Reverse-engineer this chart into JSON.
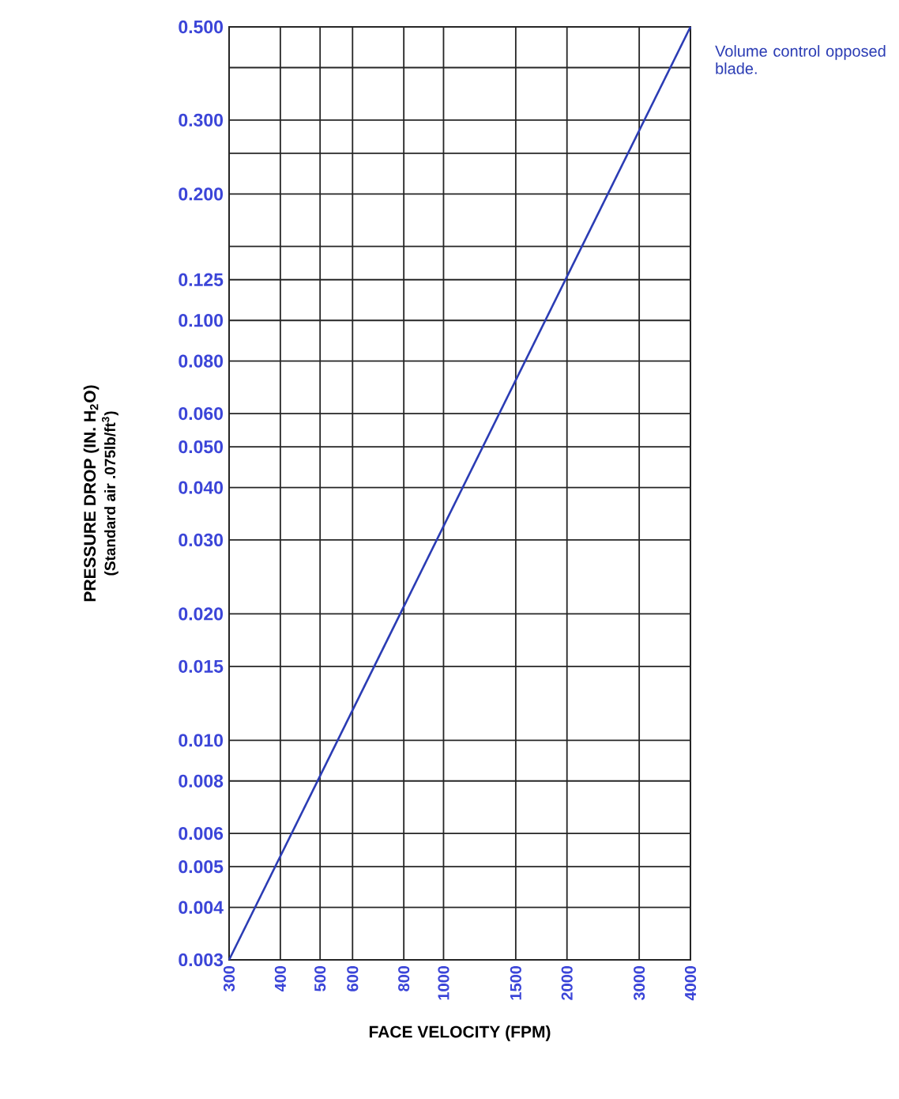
{
  "chart_data": {
    "type": "line",
    "xlabel": "FACE VELOCITY (FPM)",
    "ylabel": "PRESSURE DROP (IN. H$_{2}$O)",
    "annotations": [
      "(Standard air .075lb/ft$^{3}$)"
    ],
    "log": "xy",
    "xlim": [
      300,
      4000
    ],
    "ylim": [
      0.003,
      0.5
    ],
    "xticks": [
      300,
      400,
      500,
      600,
      800,
      1000,
      1500,
      2000,
      3000,
      4000
    ],
    "yticks": [
      {
        "value": 0.003,
        "label": "0.003"
      },
      {
        "value": 0.004,
        "label": "0.004"
      },
      {
        "value": 0.005,
        "label": "0.005"
      },
      {
        "value": 0.006,
        "label": "0.006"
      },
      {
        "value": 0.008,
        "label": "0.008"
      },
      {
        "value": 0.01,
        "label": "0.010"
      },
      {
        "value": 0.015,
        "label": "0.015"
      },
      {
        "value": 0.02,
        "label": "0.020"
      },
      {
        "value": 0.03,
        "label": "0.030"
      },
      {
        "value": 0.04,
        "label": "0.040"
      },
      {
        "value": 0.05,
        "label": "0.050"
      },
      {
        "value": 0.06,
        "label": "0.060"
      },
      {
        "value": 0.08,
        "label": "0.080"
      },
      {
        "value": 0.1,
        "label": "0.100"
      },
      {
        "value": 0.125,
        "label": "0.125"
      },
      {
        "value": 0.15,
        "label": null
      },
      {
        "value": 0.2,
        "label": "0.200"
      },
      {
        "value": 0.25,
        "label": null
      },
      {
        "value": 0.3,
        "label": "0.300"
      },
      {
        "value": 0.4,
        "label": null
      },
      {
        "value": 0.5,
        "label": "0.500"
      }
    ],
    "grid": true,
    "series": [
      {
        "name": "Volume control opposed blade.",
        "color": "#2b3cb4",
        "x": [
          300,
          4000
        ],
        "values": [
          0.003,
          0.5
        ]
      }
    ]
  }
}
